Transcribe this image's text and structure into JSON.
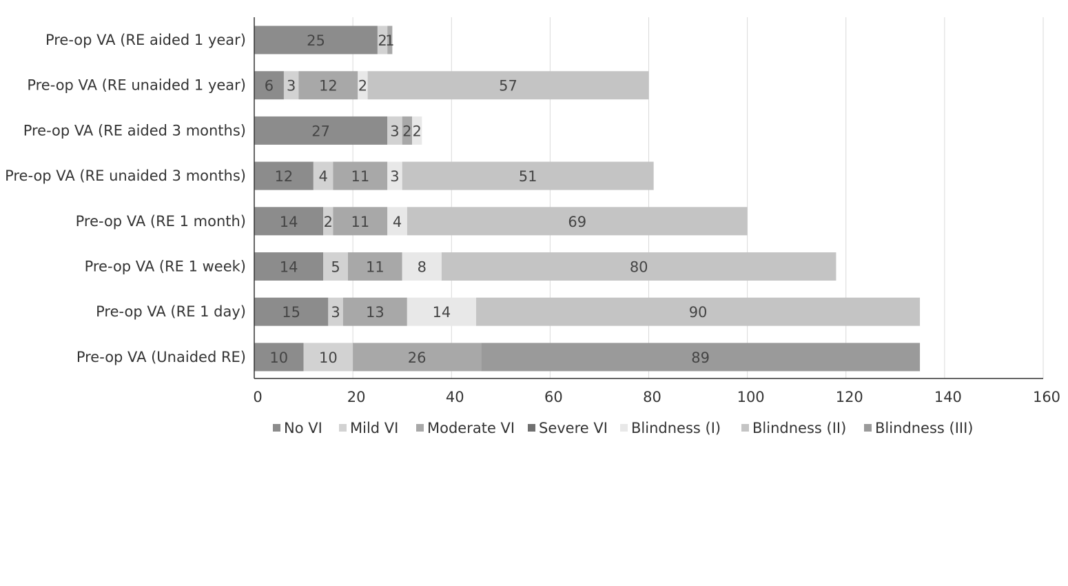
{
  "chart_data": {
    "type": "bar",
    "orientation": "horizontal",
    "stacked": true,
    "title": "",
    "xlabel": "",
    "ylabel": "",
    "xlim": [
      0,
      160
    ],
    "xticks": [
      "0",
      "20",
      "40",
      "60",
      "80",
      "100",
      "120",
      "140",
      "160"
    ],
    "grid": "vertical",
    "legend_position": "bottom",
    "categories": [
      "Pre-op VA (RE aided 1 year)",
      "Pre-op VA (RE unaided 1 year)",
      "Pre-op VA (RE aided 3 months)",
      "Pre-op VA (RE unaided 3 months)",
      "Pre-op VA (RE 1 month)",
      "Pre-op VA (RE 1 week)",
      "Pre-op VA (RE 1 day)",
      "Pre-op VA (Unaided RE)"
    ],
    "series": [
      {
        "name": "No VI",
        "color": "#8c8c8c",
        "values": [
          25,
          6,
          27,
          12,
          14,
          14,
          15,
          10
        ]
      },
      {
        "name": "Mild VI",
        "color": "#d2d2d2",
        "values": [
          2,
          3,
          3,
          4,
          2,
          5,
          3,
          10
        ]
      },
      {
        "name": "Moderate VI",
        "color": "#a8a8a8",
        "values": [
          1,
          12,
          2,
          11,
          11,
          11,
          13,
          26
        ]
      },
      {
        "name": "Severe VI",
        "color": "#707070",
        "values": [
          0,
          0,
          0,
          0,
          0,
          0,
          0,
          0
        ]
      },
      {
        "name": "Blindness (I)",
        "color": "#e8e8e8",
        "values": [
          0,
          2,
          2,
          3,
          4,
          8,
          14,
          0
        ]
      },
      {
        "name": "Blindness (II)",
        "color": "#c4c4c4",
        "values": [
          0,
          57,
          0,
          51,
          69,
          80,
          90,
          0
        ]
      },
      {
        "name": "Blindness (III)",
        "color": "#9a9a9a",
        "values": [
          0,
          0,
          0,
          0,
          0,
          0,
          0,
          89
        ]
      }
    ],
    "data_labels": [
      [
        "25",
        "2",
        "1",
        "",
        "",
        "",
        ""
      ],
      [
        "6",
        "3",
        "12",
        "",
        "2",
        "57",
        ""
      ],
      [
        "27",
        "3",
        "2",
        "",
        "2",
        "",
        ""
      ],
      [
        "12",
        "4",
        "11",
        "",
        "3",
        "51",
        ""
      ],
      [
        "14",
        "2",
        "11",
        "",
        "4",
        "69",
        ""
      ],
      [
        "14",
        "5",
        "11",
        "",
        "8",
        "80",
        ""
      ],
      [
        "15",
        "3",
        "13",
        "",
        "14",
        "90",
        ""
      ],
      [
        "10",
        "10",
        "26",
        "",
        "",
        "",
        "89"
      ]
    ]
  }
}
